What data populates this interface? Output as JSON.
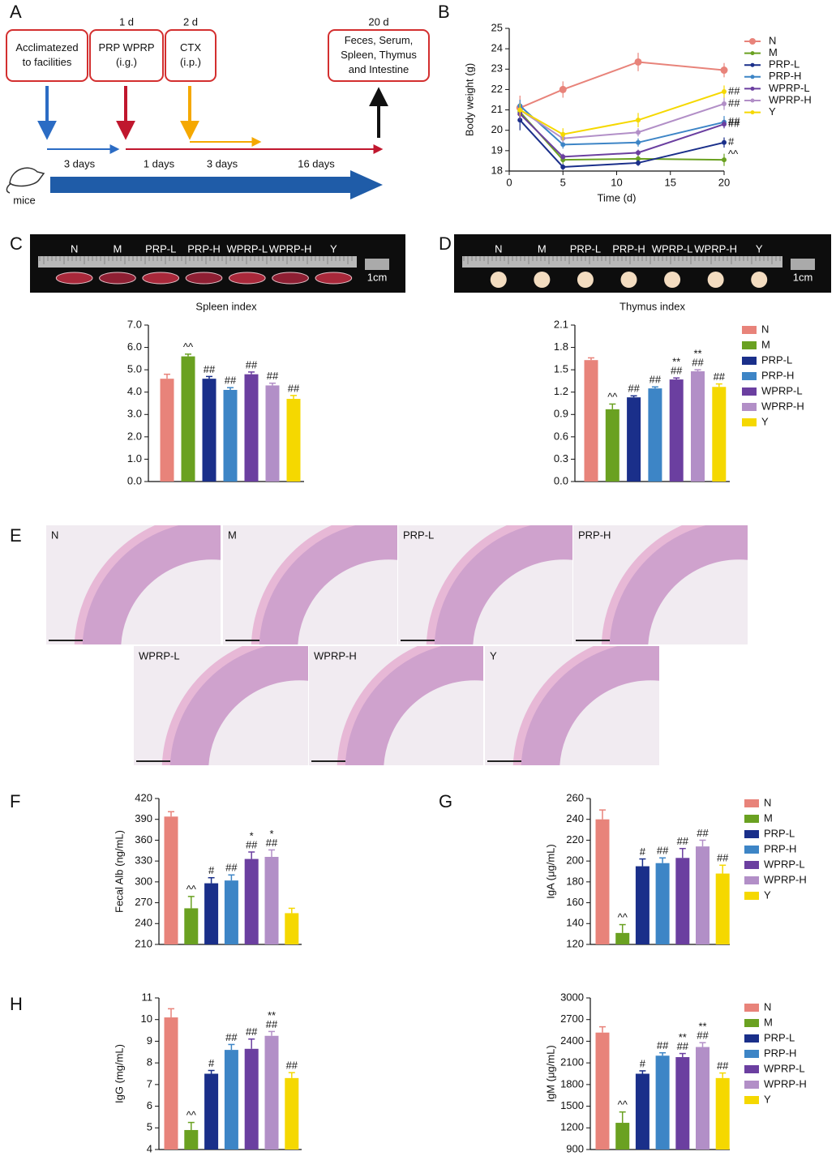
{
  "panel_labels": [
    "A",
    "B",
    "C",
    "D",
    "E",
    "F",
    "G",
    "H"
  ],
  "timeline": {
    "days": [
      "1 d",
      "2 d",
      "20 d"
    ],
    "boxes": [
      {
        "lines": [
          "Acclimatezed",
          "to facilities"
        ]
      },
      {
        "lines": [
          "PRP WPRP",
          "(i.g.)"
        ]
      },
      {
        "lines": [
          "CTX",
          "(i.p.)"
        ]
      },
      {
        "lines": [
          "Feces, Serum,",
          "Spleen,  Thymus",
          "and Intestine"
        ]
      }
    ],
    "durations": [
      "3 days",
      "1 days",
      "3 days",
      "16 days"
    ],
    "subject": "mice"
  },
  "spleen_photo": {
    "labels": [
      "N",
      "M",
      "PRP-L",
      "PRP-H",
      "WPRP-L",
      "WPRP-H",
      "Y"
    ],
    "scale": "1cm"
  },
  "thymus_photo": {
    "labels": [
      "N",
      "M",
      "PRP-L",
      "PRP-H",
      "WPRP-L",
      "WPRP-H",
      "Y"
    ],
    "scale": "1cm"
  },
  "histology": {
    "labels": [
      "N",
      "M",
      "PRP-L",
      "PRP-H",
      "WPRP-L",
      "WPRP-H",
      "Y"
    ]
  },
  "chart_data": [
    {
      "type": "line",
      "x_label": "Time (d)",
      "y_label": "Body weight (g)",
      "x": [
        1,
        5,
        12,
        20
      ],
      "xlim": [
        0,
        20
      ],
      "xticks": [
        0,
        5,
        10,
        15,
        20
      ],
      "ylim": [
        18,
        25
      ],
      "yticks": [
        18,
        19,
        20,
        21,
        22,
        23,
        24,
        25
      ],
      "legend": "right",
      "series": [
        {
          "name": "N",
          "color": "#e8837a",
          "values": [
            21.1,
            22.0,
            23.35,
            22.95
          ],
          "errors": [
            0.6,
            0.4,
            0.45,
            0.35
          ]
        },
        {
          "name": "M",
          "color": "#6aa121",
          "values": [
            20.9,
            18.55,
            18.6,
            18.55
          ],
          "errors": [
            0.3,
            0.2,
            0.2,
            0.3
          ],
          "annotation": "^^"
        },
        {
          "name": "PRP-L",
          "color": "#1a2f8a",
          "values": [
            20.5,
            18.2,
            18.4,
            19.4
          ],
          "errors": [
            0.5,
            0.15,
            0.15,
            0.25
          ],
          "annotation": "#"
        },
        {
          "name": "PRP-H",
          "color": "#3d85c6",
          "values": [
            21.2,
            19.3,
            19.4,
            20.4
          ],
          "errors": [
            0.3,
            0.2,
            0.2,
            0.3
          ],
          "annotation": "##"
        },
        {
          "name": "WPRP-L",
          "color": "#6b3fa0",
          "values": [
            20.8,
            18.7,
            18.9,
            20.3
          ],
          "errors": [
            0.3,
            0.15,
            0.15,
            0.2
          ],
          "annotation": "##"
        },
        {
          "name": "WPRP-H",
          "color": "#b28fc7",
          "values": [
            21.0,
            19.6,
            19.9,
            21.3
          ],
          "errors": [
            0.3,
            0.2,
            0.2,
            0.3
          ],
          "annotation": "##"
        },
        {
          "name": "Y",
          "color": "#f5d800",
          "values": [
            21.0,
            19.8,
            20.5,
            21.9
          ],
          "errors": [
            0.3,
            0.3,
            0.35,
            0.3
          ],
          "annotation": "##"
        }
      ]
    },
    {
      "type": "bar",
      "title": "Spleen index",
      "ylim": [
        0,
        7
      ],
      "yticks": [
        {
          "value": 0,
          "label": "0.0"
        },
        {
          "value": 1,
          "label": "1.0"
        },
        {
          "value": 2,
          "label": "2.0"
        },
        {
          "value": 3,
          "label": "3.0"
        },
        {
          "value": 4,
          "label": "4.0"
        },
        {
          "value": 5,
          "label": "5.0"
        },
        {
          "value": 6,
          "label": "6.0"
        },
        {
          "value": 7,
          "label": "7.0"
        }
      ],
      "colors": [
        "#e8837a",
        "#6aa121",
        "#1a2f8a",
        "#3d85c6",
        "#6b3fa0",
        "#b28fc7",
        "#f5d800"
      ],
      "values": [
        4.6,
        5.6,
        4.6,
        4.1,
        4.8,
        4.3,
        3.7
      ],
      "errors": [
        0.2,
        0.1,
        0.1,
        0.1,
        0.1,
        0.1,
        0.15
      ],
      "annotations": [
        null,
        [
          "^^"
        ],
        [
          "##"
        ],
        [
          "##"
        ],
        [
          "##"
        ],
        [
          "##"
        ],
        [
          "##"
        ]
      ]
    },
    {
      "type": "bar",
      "title": "Thymus  index",
      "ylim": [
        0,
        2.1
      ],
      "yticks": [
        {
          "value": 0,
          "label": "0.0"
        },
        0.3,
        0.6,
        0.9,
        1.2,
        1.5,
        1.8,
        2.1
      ],
      "categories": [
        "N",
        "M",
        "PRP-L",
        "PRP-H",
        "WPRP-L",
        "WPRP-H",
        "Y"
      ],
      "legend": "right",
      "colors": [
        "#e8837a",
        "#6aa121",
        "#1a2f8a",
        "#3d85c6",
        "#6b3fa0",
        "#b28fc7",
        "#f5d800"
      ],
      "values": [
        1.63,
        0.97,
        1.13,
        1.25,
        1.37,
        1.48,
        1.27
      ],
      "errors": [
        0.03,
        0.07,
        0.02,
        0.02,
        0.02,
        0.02,
        0.04
      ],
      "annotations": [
        null,
        [
          "^^"
        ],
        [
          "##"
        ],
        [
          "##"
        ],
        [
          "**",
          "##"
        ],
        [
          "**",
          "##"
        ],
        [
          "##"
        ]
      ]
    },
    {
      "type": "bar",
      "y_label": "Fecal Alb (ng/mL)",
      "ylim": [
        210,
        420
      ],
      "yticks": [
        210,
        240,
        270,
        300,
        330,
        360,
        390,
        420
      ],
      "colors": [
        "#e8837a",
        "#6aa121",
        "#1a2f8a",
        "#3d85c6",
        "#6b3fa0",
        "#b28fc7",
        "#f5d800"
      ],
      "values": [
        394,
        262,
        298,
        302,
        333,
        336,
        255
      ],
      "errors": [
        7,
        17,
        8,
        8,
        10,
        10,
        7
      ],
      "annotations": [
        null,
        [
          "^^"
        ],
        [
          "#"
        ],
        [
          "##"
        ],
        [
          "*",
          "##"
        ],
        [
          "*",
          "##"
        ],
        null
      ]
    },
    {
      "type": "bar",
      "y_label": "IgA (μg/mL)",
      "ylim": [
        120,
        260
      ],
      "yticks": [
        120,
        140,
        160,
        180,
        200,
        220,
        240,
        260
      ],
      "categories": [
        "N",
        "M",
        "PRP-L",
        "PRP-H",
        "WPRP-L",
        "WPRP-H",
        "Y"
      ],
      "legend": "right",
      "colors": [
        "#e8837a",
        "#6aa121",
        "#1a2f8a",
        "#3d85c6",
        "#6b3fa0",
        "#b28fc7",
        "#f5d800"
      ],
      "values": [
        240,
        131,
        195,
        198,
        203,
        214,
        188
      ],
      "errors": [
        9,
        8,
        7,
        5,
        9,
        6,
        8
      ],
      "annotations": [
        null,
        [
          "^^"
        ],
        [
          "#"
        ],
        [
          "##"
        ],
        [
          "##"
        ],
        [
          "##"
        ],
        [
          "##"
        ]
      ]
    },
    {
      "type": "bar",
      "y_label": "IgG (mg/mL)",
      "ylim": [
        4,
        11
      ],
      "yticks": [
        4,
        5,
        6,
        7,
        8,
        9,
        10,
        11
      ],
      "colors": [
        "#e8837a",
        "#6aa121",
        "#1a2f8a",
        "#3d85c6",
        "#6b3fa0",
        "#b28fc7",
        "#f5d800"
      ],
      "values": [
        10.1,
        4.9,
        7.5,
        8.6,
        8.65,
        9.25,
        7.3
      ],
      "errors": [
        0.4,
        0.35,
        0.15,
        0.25,
        0.45,
        0.2,
        0.25
      ],
      "annotations": [
        null,
        [
          "^^"
        ],
        [
          "#"
        ],
        [
          "##"
        ],
        [
          "##"
        ],
        [
          "**",
          "##"
        ],
        [
          "##"
        ]
      ]
    },
    {
      "type": "bar",
      "y_label": "IgM (μg/mL)",
      "ylim": [
        900,
        3000
      ],
      "yticks": [
        900,
        1200,
        1500,
        1800,
        2100,
        2400,
        2700,
        3000
      ],
      "categories": [
        "N",
        "M",
        "PRP-L",
        "PRP-H",
        "WPRP-L",
        "WPRP-H",
        "Y"
      ],
      "legend": "right",
      "colors": [
        "#e8837a",
        "#6aa121",
        "#1a2f8a",
        "#3d85c6",
        "#6b3fa0",
        "#b28fc7",
        "#f5d800"
      ],
      "values": [
        2520,
        1270,
        1950,
        2200,
        2180,
        2320,
        1890
      ],
      "errors": [
        80,
        150,
        40,
        40,
        50,
        60,
        70
      ],
      "annotations": [
        null,
        [
          "^^"
        ],
        [
          "#"
        ],
        [
          "##"
        ],
        [
          "**",
          "##"
        ],
        [
          "**",
          "##"
        ],
        [
          "##"
        ]
      ]
    }
  ]
}
